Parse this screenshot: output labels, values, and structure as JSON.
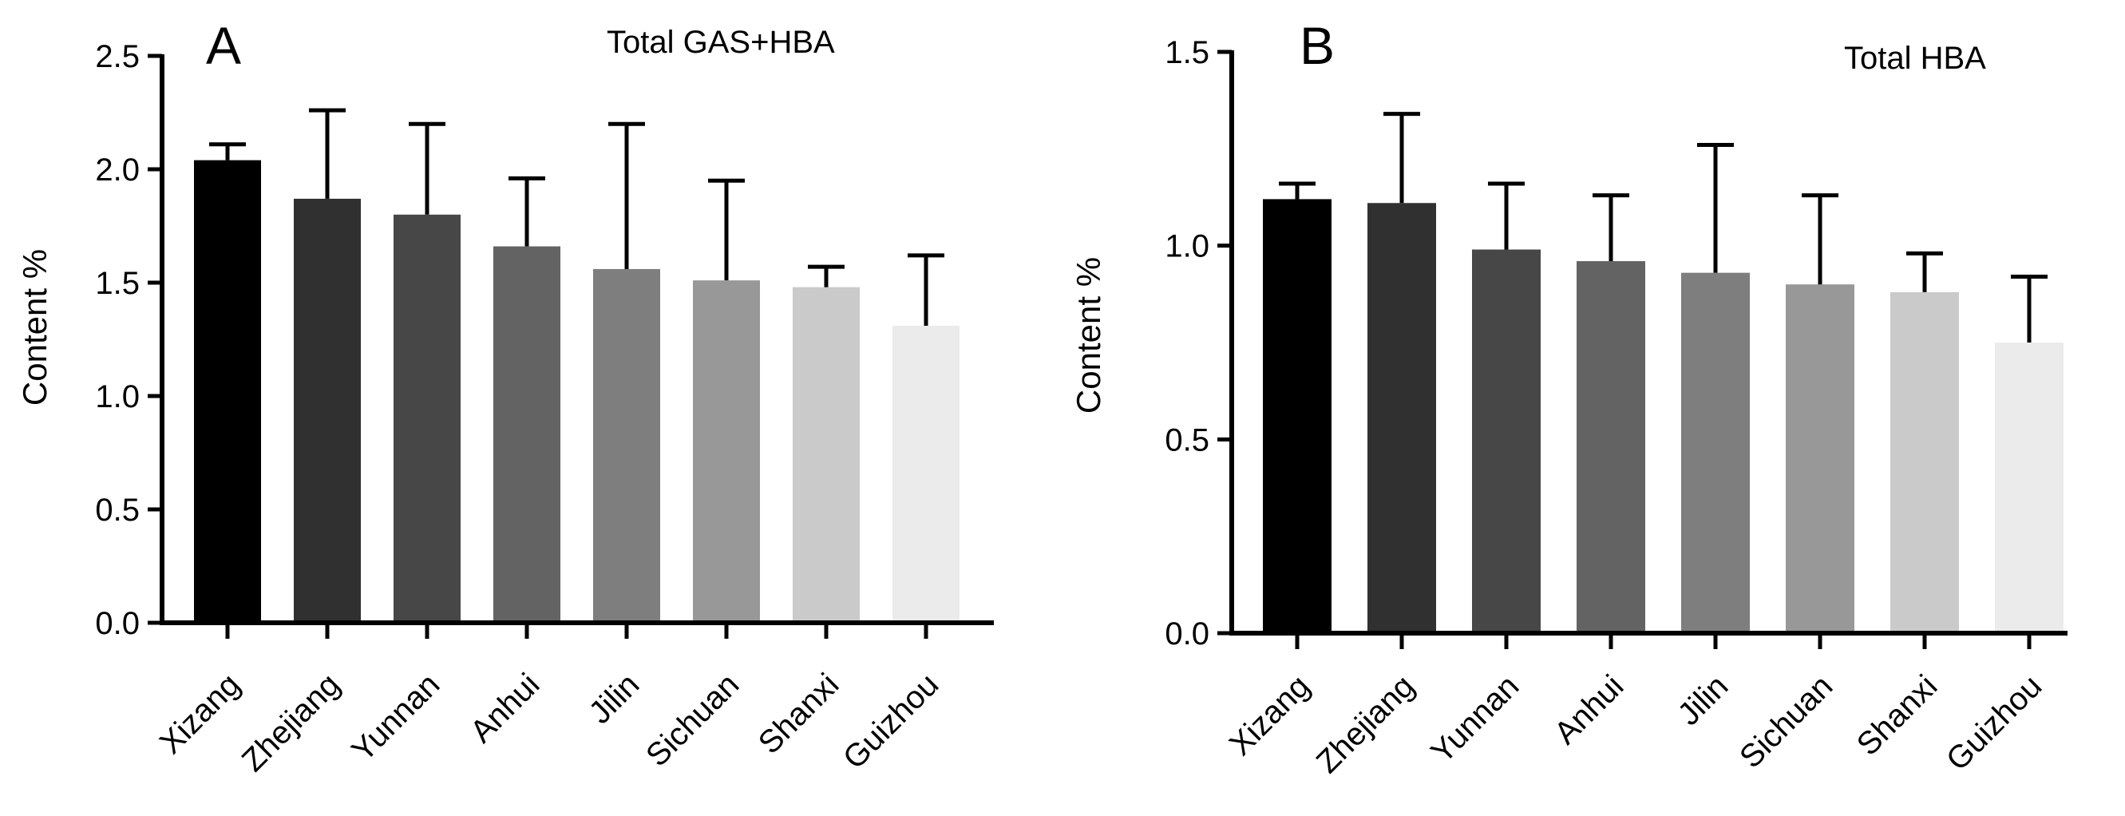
{
  "chart_data": [
    {
      "type": "bar",
      "panel_letter": "A",
      "title": "Total GAS+HBA",
      "xlabel": "",
      "ylabel": "Content %",
      "ylim": [
        0,
        2.5
      ],
      "yticks": [
        "0.0",
        "0.5",
        "1.0",
        "1.5",
        "2.0",
        "2.5"
      ],
      "categories": [
        "Xizang",
        "Zhejiang",
        "Yunnan",
        "Anhui",
        "Jilin",
        "Sichuan",
        "Shanxi",
        "Guizhou"
      ],
      "values": [
        2.04,
        1.87,
        1.8,
        1.66,
        1.56,
        1.51,
        1.48,
        1.31
      ],
      "errors": [
        0.07,
        0.39,
        0.4,
        0.3,
        0.64,
        0.44,
        0.09,
        0.31
      ],
      "colors": [
        "#000000",
        "#303030",
        "#474747",
        "#636363",
        "#7e7e7e",
        "#989898",
        "#cacaca",
        "#ebebeb"
      ]
    },
    {
      "type": "bar",
      "panel_letter": "B",
      "title": "Total HBA",
      "xlabel": "",
      "ylabel": "Content %",
      "ylim": [
        0,
        1.5
      ],
      "yticks": [
        "0.0",
        "0.5",
        "1.0",
        "1.5"
      ],
      "categories": [
        "Xizang",
        "Zhejiang",
        "Yunnan",
        "Anhui",
        "Jilin",
        "Sichuan",
        "Shanxi",
        "Guizhou"
      ],
      "values": [
        1.12,
        1.11,
        0.99,
        0.96,
        0.93,
        0.9,
        0.88,
        0.75
      ],
      "errors": [
        0.04,
        0.23,
        0.17,
        0.17,
        0.33,
        0.23,
        0.1,
        0.17
      ],
      "colors": [
        "#000000",
        "#303030",
        "#474747",
        "#636363",
        "#7e7e7e",
        "#989898",
        "#cacaca",
        "#ebebeb"
      ]
    }
  ]
}
